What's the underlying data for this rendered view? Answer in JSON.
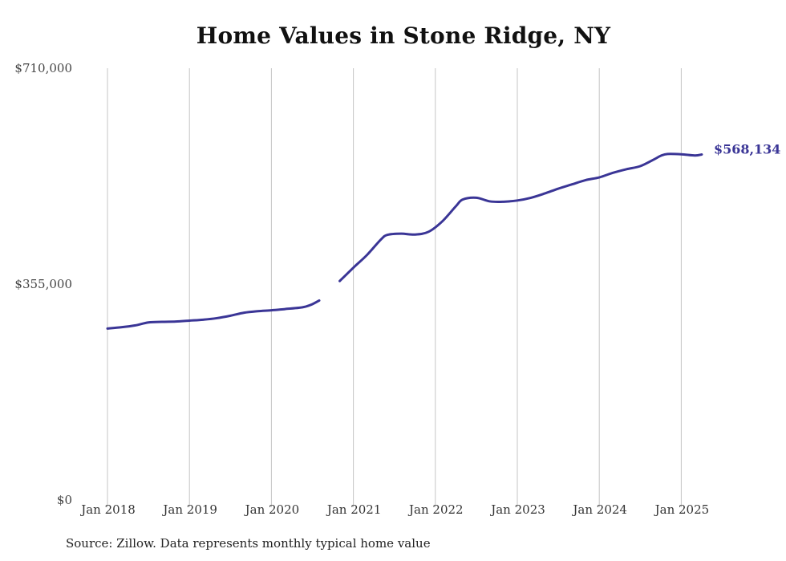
{
  "chart_data": {
    "type": "line",
    "title": "Home Values in Stone Ridge, NY",
    "source": "Source: Zillow. Data represents monthly typical home value",
    "xlabel": "",
    "ylabel": "",
    "ylim": [
      0,
      710000
    ],
    "y_ticks": [
      {
        "value": 0,
        "label": "$0"
      },
      {
        "value": 355000,
        "label": "$355,000"
      },
      {
        "value": 710000,
        "label": "$710,000"
      }
    ],
    "x_ticks": [
      {
        "date": "2018-01",
        "label": "Jan 2018"
      },
      {
        "date": "2019-01",
        "label": "Jan 2019"
      },
      {
        "date": "2020-01",
        "label": "Jan 2020"
      },
      {
        "date": "2021-01",
        "label": "Jan 2021"
      },
      {
        "date": "2022-01",
        "label": "Jan 2022"
      },
      {
        "date": "2023-01",
        "label": "Jan 2023"
      },
      {
        "date": "2024-01",
        "label": "Jan 2024"
      },
      {
        "date": "2025-01",
        "label": "Jan 2025"
      }
    ],
    "grid": {
      "vertical": true,
      "horizontal": false
    },
    "line_color": "#3a3596",
    "end_label": "$568,134",
    "series": [
      {
        "name": "",
        "segments": [
          [
            {
              "x": "2018-01",
              "y": 282000
            },
            {
              "x": "2018-03",
              "y": 284000
            },
            {
              "x": "2018-05",
              "y": 287000
            },
            {
              "x": "2018-07",
              "y": 292000
            },
            {
              "x": "2018-09",
              "y": 293000
            },
            {
              "x": "2018-11",
              "y": 293500
            },
            {
              "x": "2019-01",
              "y": 295000
            },
            {
              "x": "2019-03",
              "y": 296500
            },
            {
              "x": "2019-05",
              "y": 299000
            },
            {
              "x": "2019-07",
              "y": 303000
            },
            {
              "x": "2019-09",
              "y": 308000
            },
            {
              "x": "2019-11",
              "y": 310500
            },
            {
              "x": "2020-01",
              "y": 312000
            },
            {
              "x": "2020-03",
              "y": 314000
            },
            {
              "x": "2020-05",
              "y": 316000
            },
            {
              "x": "2020-06",
              "y": 318000
            },
            {
              "x": "2020-07",
              "y": 322000
            },
            {
              "x": "2020-08",
              "y": 328000
            }
          ],
          [
            {
              "x": "2020-11",
              "y": 360000
            },
            {
              "x": "2021-01",
              "y": 382000
            },
            {
              "x": "2021-03",
              "y": 403000
            },
            {
              "x": "2021-05",
              "y": 428000
            },
            {
              "x": "2021-06",
              "y": 436000
            },
            {
              "x": "2021-08",
              "y": 438000
            },
            {
              "x": "2021-10",
              "y": 436500
            },
            {
              "x": "2021-12",
              "y": 441000
            },
            {
              "x": "2022-02",
              "y": 458000
            },
            {
              "x": "2022-04",
              "y": 483000
            },
            {
              "x": "2022-05",
              "y": 494000
            },
            {
              "x": "2022-07",
              "y": 497000
            },
            {
              "x": "2022-09",
              "y": 491000
            },
            {
              "x": "2022-11",
              "y": 490500
            },
            {
              "x": "2023-01",
              "y": 492500
            },
            {
              "x": "2023-03",
              "y": 497000
            },
            {
              "x": "2023-05",
              "y": 504000
            },
            {
              "x": "2023-07",
              "y": 512000
            },
            {
              "x": "2023-09",
              "y": 519000
            },
            {
              "x": "2023-11",
              "y": 526000
            },
            {
              "x": "2024-01",
              "y": 530500
            },
            {
              "x": "2024-03",
              "y": 538000
            },
            {
              "x": "2024-05",
              "y": 544000
            },
            {
              "x": "2024-07",
              "y": 549000
            },
            {
              "x": "2024-09",
              "y": 560000
            },
            {
              "x": "2024-10",
              "y": 566000
            },
            {
              "x": "2024-11",
              "y": 569000
            },
            {
              "x": "2025-01",
              "y": 568500
            },
            {
              "x": "2025-03",
              "y": 566500
            },
            {
              "x": "2025-04",
              "y": 568134
            }
          ]
        ]
      }
    ]
  }
}
